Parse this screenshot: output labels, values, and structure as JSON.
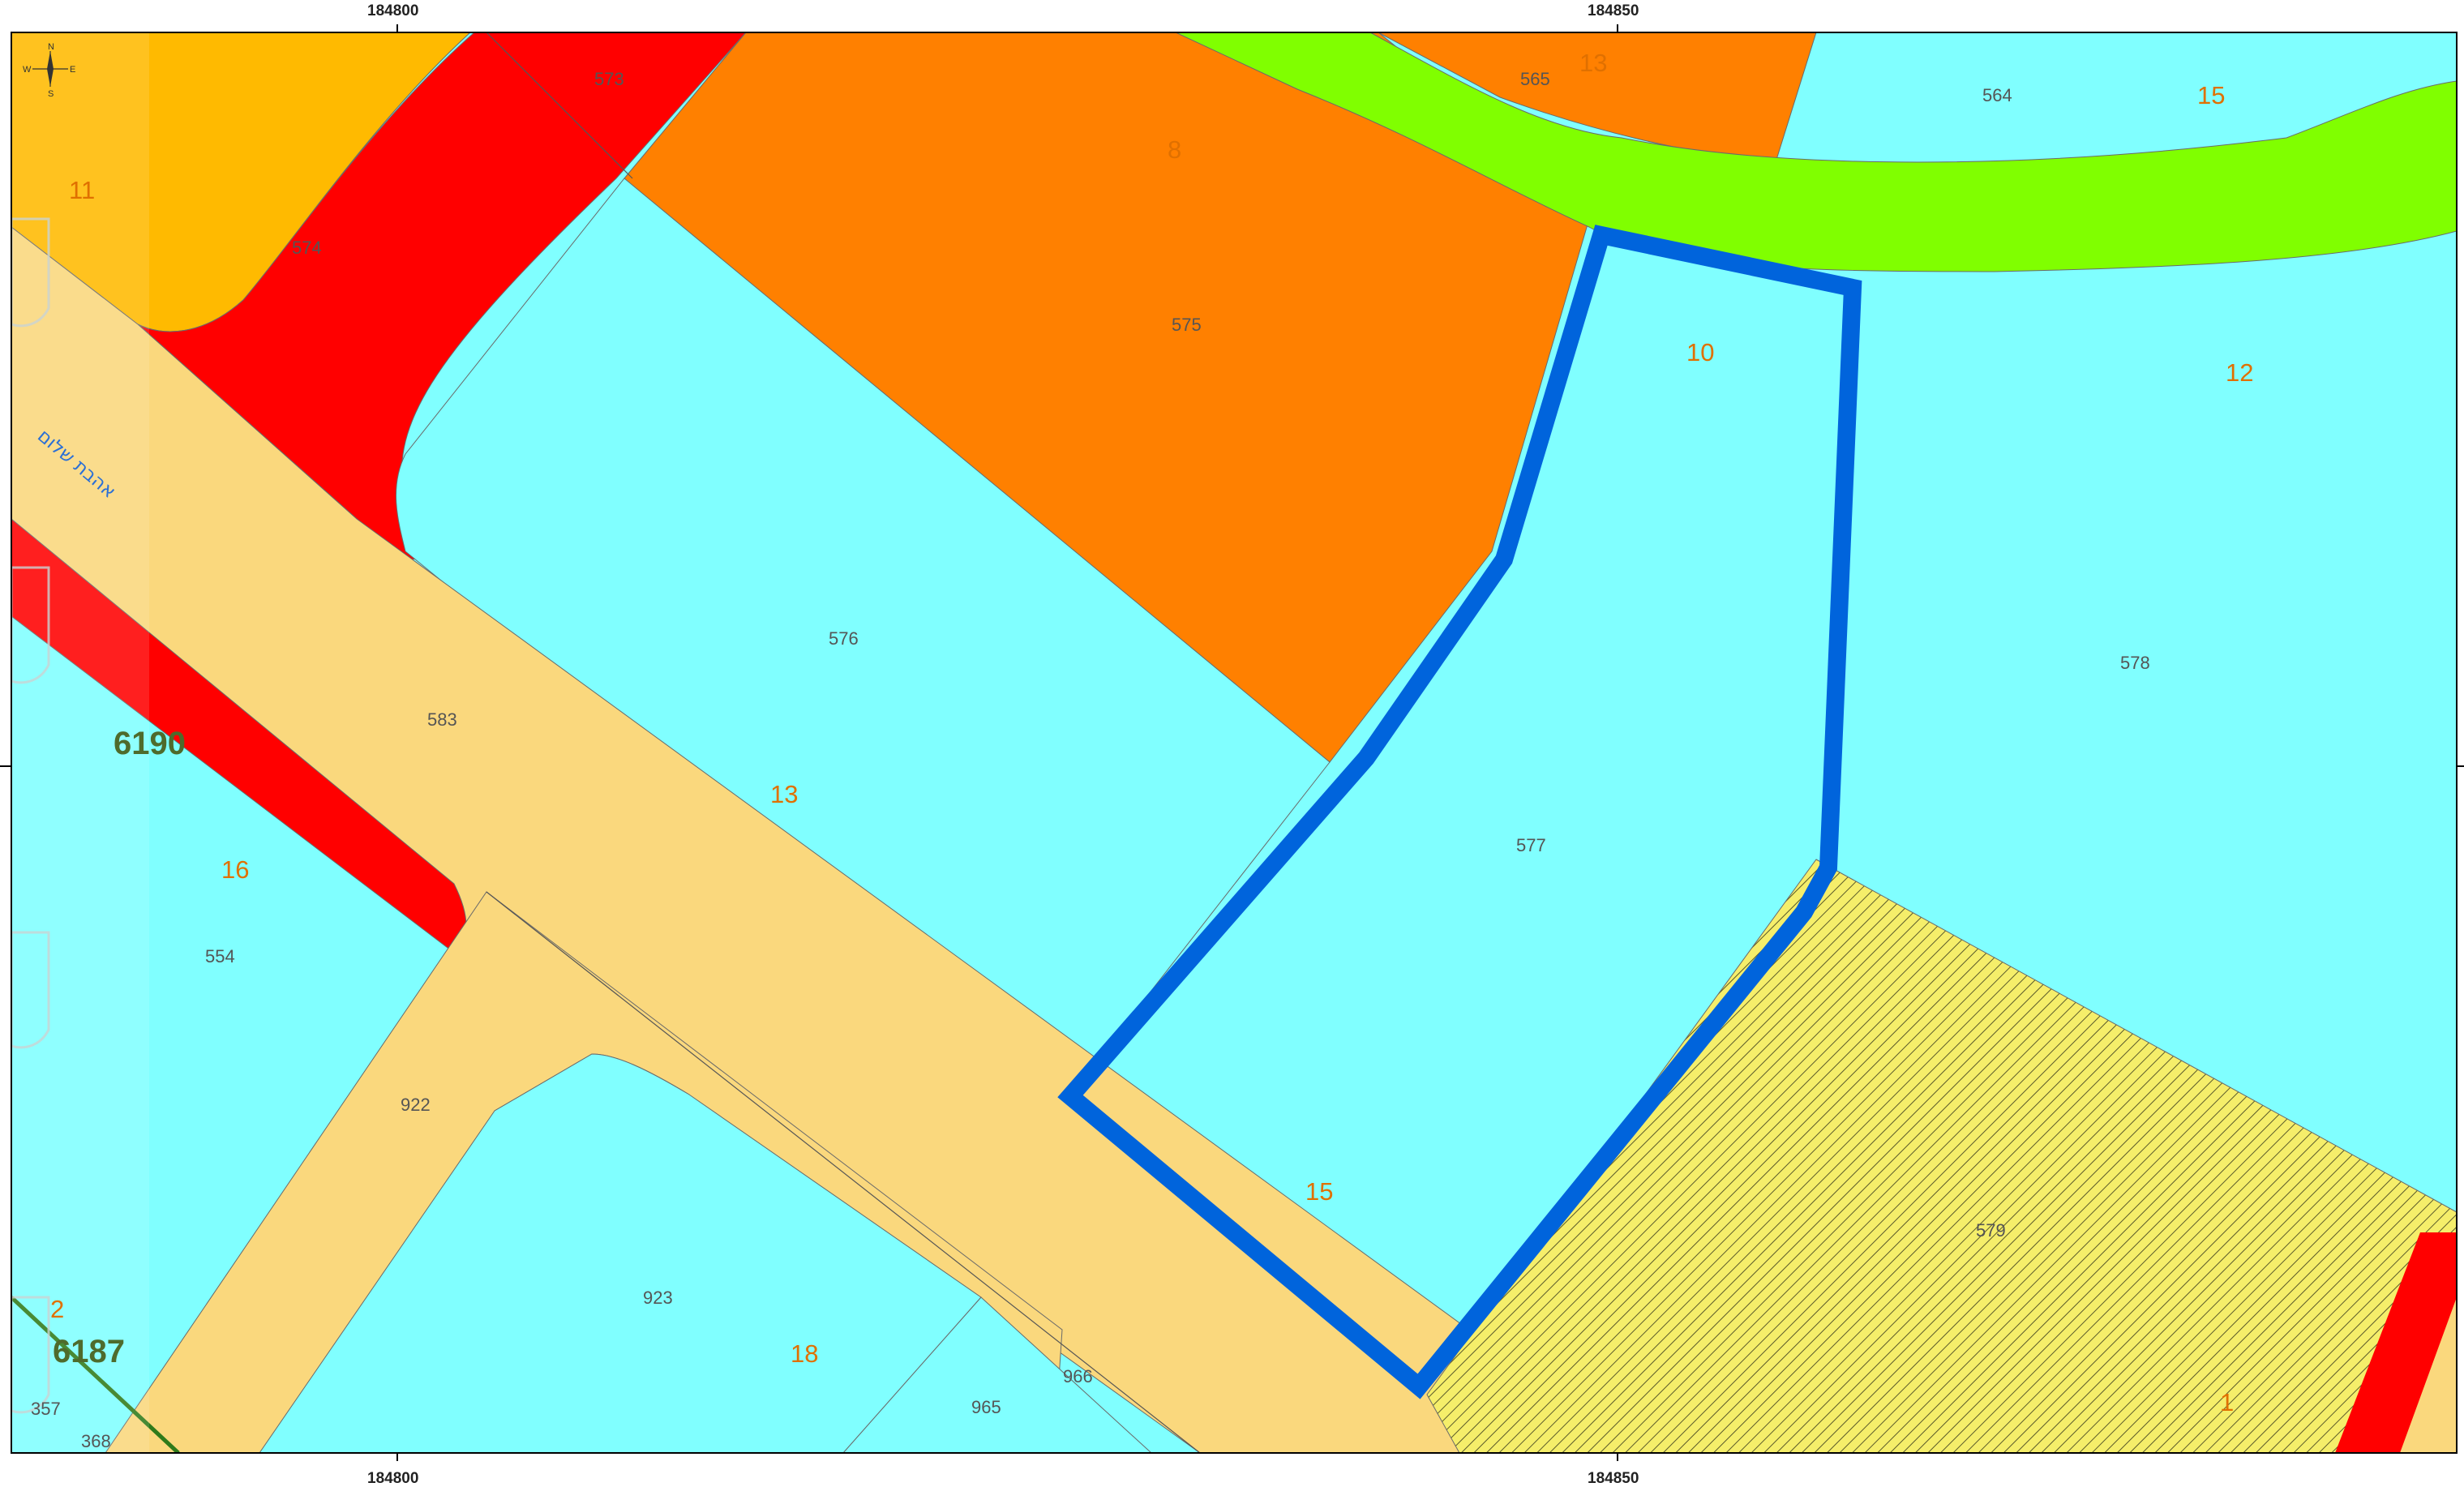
{
  "coordinates": {
    "top": [
      "184800",
      "184850"
    ],
    "bottom": [
      "184800",
      "184850"
    ]
  },
  "compass": {
    "n": "N",
    "s": "S",
    "e": "E",
    "w": "W"
  },
  "street_name": "אהבת שלום",
  "blocks": [
    "6190",
    "6187"
  ],
  "parcels": [
    "573",
    "574",
    "575",
    "576",
    "577",
    "578",
    "579",
    "583",
    "554",
    "922",
    "923",
    "965",
    "966",
    "564",
    "565",
    "357",
    "368"
  ],
  "plots": [
    "11",
    "8",
    "13",
    "15",
    "10",
    "12",
    "13",
    "16",
    "18",
    "15",
    "2",
    "1"
  ],
  "colors": {
    "residential": "#80ffff",
    "commercial": "#ff8000",
    "road": "#fad87d",
    "road_red": "#ff0000",
    "open_space": "#80ff00",
    "yellow_orange": "#ffba00",
    "hatched_area": "#f5ee6a",
    "highlight_outline": "#0064dc"
  }
}
